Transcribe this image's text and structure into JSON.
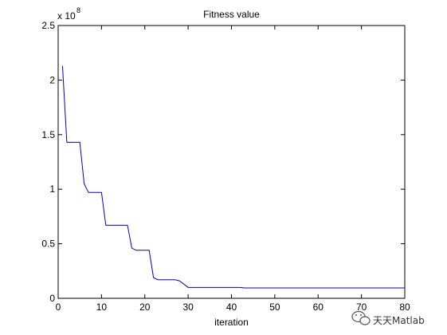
{
  "chart_data": {
    "type": "line",
    "title": "Fitness value",
    "xlabel": "iteration",
    "ylabel": "",
    "xlim": [
      0,
      80
    ],
    "ylim": [
      0,
      2.5
    ],
    "y_multiplier_base": "x 10",
    "y_multiplier_exp": "8",
    "x_ticks": [
      0,
      10,
      20,
      30,
      40,
      50,
      60,
      70,
      80
    ],
    "y_ticks": [
      0,
      0.5,
      1,
      1.5,
      2,
      2.5
    ],
    "grid": false,
    "legend": "none",
    "line_color": "#0000cc",
    "series": [
      {
        "x": [
          1,
          2,
          5,
          6,
          7,
          10,
          11,
          16,
          17,
          18,
          21,
          22,
          23,
          27,
          28,
          30,
          42,
          43,
          80
        ],
        "y": [
          2.13,
          1.43,
          1.43,
          1.05,
          0.97,
          0.97,
          0.67,
          0.67,
          0.46,
          0.44,
          0.44,
          0.19,
          0.17,
          0.17,
          0.16,
          0.1,
          0.1,
          0.095,
          0.095
        ]
      }
    ]
  },
  "watermark": {
    "text": "天天Matlab",
    "icon": "wechat-icon"
  }
}
